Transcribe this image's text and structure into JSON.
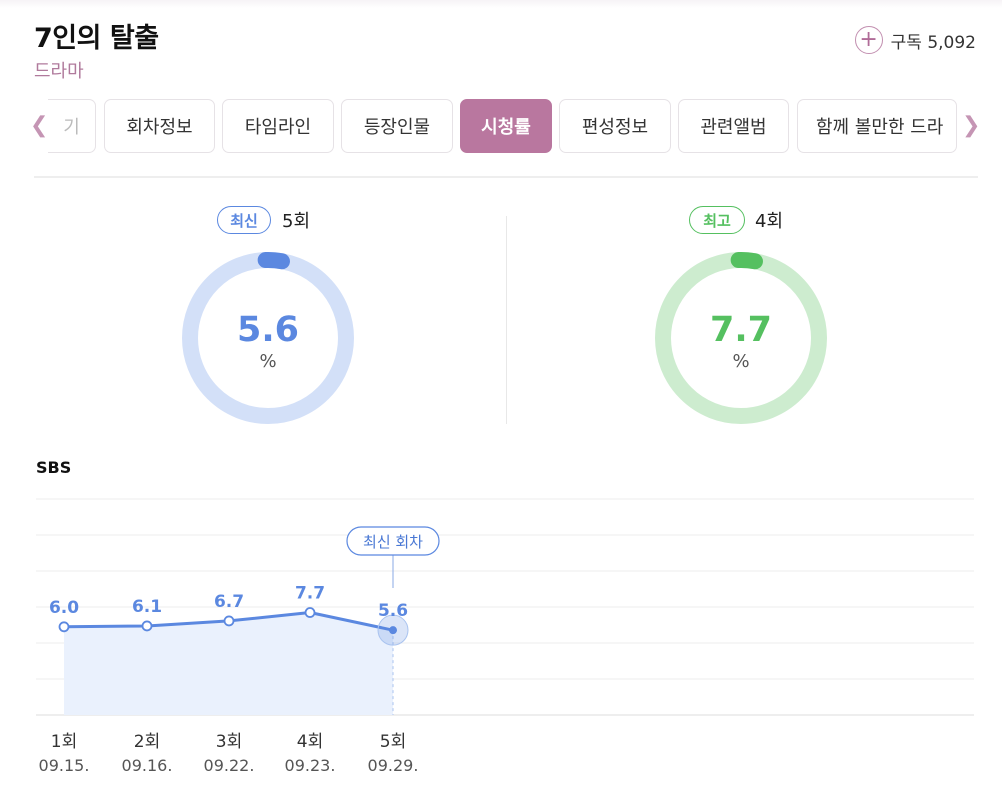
{
  "program": {
    "title": "7인의 탈출",
    "genre": "드라마"
  },
  "subscribe": {
    "label": "구독 5,092"
  },
  "tabs": [
    {
      "label": "기",
      "faded": true
    },
    {
      "label": "회차정보"
    },
    {
      "label": "타임라인"
    },
    {
      "label": "등장인물"
    },
    {
      "label": "시청률",
      "active": true
    },
    {
      "label": "편성정보"
    },
    {
      "label": "관련앨범"
    },
    {
      "label": "함께 볼만한 드라",
      "faded": true
    }
  ],
  "latest": {
    "badge": "최신",
    "episode": "5회",
    "value": "5.6",
    "unit": "%",
    "rating": 5.6,
    "color": "#5b88e0",
    "track_color": "#d3e0f8"
  },
  "best": {
    "badge": "최고",
    "episode": "4회",
    "value": "7.7",
    "unit": "%",
    "rating": 7.7,
    "color": "#55c060",
    "track_color": "#cdeccf"
  },
  "broadcaster": "SBS",
  "chart_data": {
    "type": "line",
    "categories": [
      "1회",
      "2회",
      "3회",
      "4회",
      "5회"
    ],
    "dates": [
      "09.15.",
      "09.16.",
      "09.22.",
      "09.23.",
      "09.29."
    ],
    "values": [
      6.0,
      6.1,
      6.7,
      7.7,
      5.6
    ],
    "value_labels": [
      "6.0",
      "6.1",
      "6.7",
      "7.7",
      "5.6"
    ],
    "highlight_index": 4,
    "highlight_label": "최신 회차",
    "line_color": "#5b88e0",
    "area_color": "#eaf1fd",
    "grid": true
  }
}
